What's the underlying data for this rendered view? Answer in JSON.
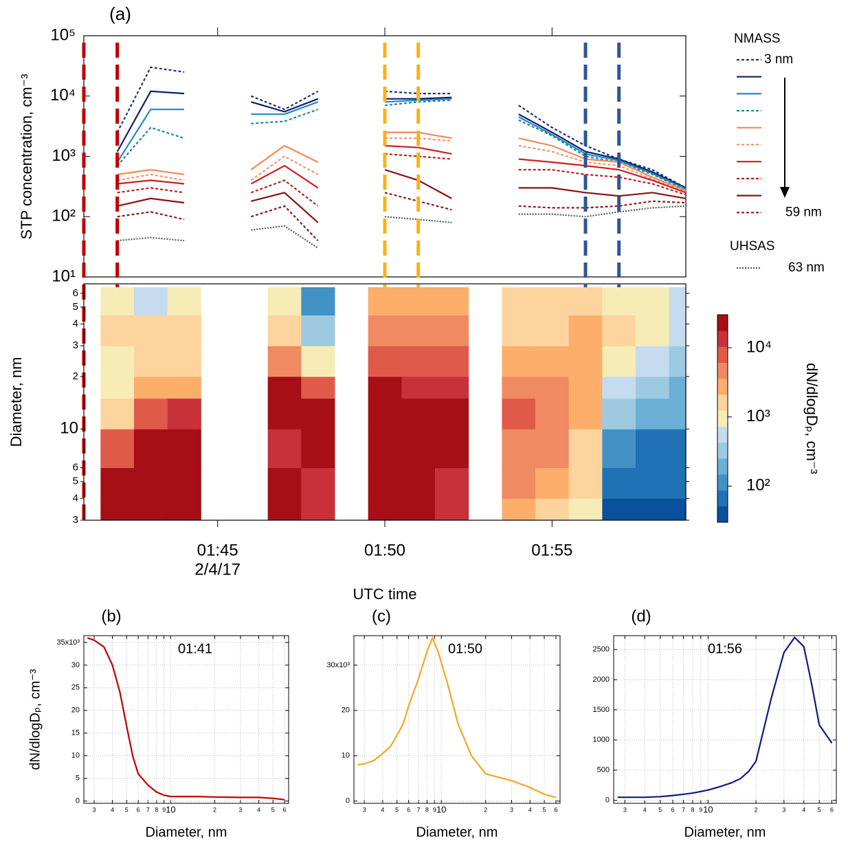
{
  "chart_data": [
    {
      "type": "line",
      "panel_label": "(a)",
      "ylabel": "STP concentration, cm⁻³",
      "log_y": true,
      "ylim": [
        10,
        100000
      ],
      "yticks": [
        {
          "value": 10,
          "label": "10¹"
        },
        {
          "value": 100,
          "label": "10²"
        },
        {
          "value": 1000,
          "label": "10³"
        },
        {
          "value": 10000,
          "label": "10⁴"
        },
        {
          "value": 100000,
          "label": "10⁵"
        }
      ],
      "xlim": [
        "01:41",
        "01:59"
      ],
      "x": [
        "01:42",
        "01:43",
        "01:44",
        "01:45",
        "01:46",
        "01:47",
        "01:48",
        "01:49",
        "01:50",
        "01:51",
        "01:52",
        "01:53",
        "01:54",
        "01:55",
        "01:56",
        "01:57",
        "01:58",
        "01:59"
      ],
      "groups": [
        {
          "title": "NMASS",
          "series": [
            {
              "name": "3 nm",
              "color": "#1f2f6e",
              "style": "dotted",
              "values": [
                2500,
                30000,
                25000,
                null,
                10000,
                6000,
                12000,
                null,
                12000,
                11000,
                11000,
                null,
                7000,
                3000,
                1500,
                900,
                600,
                300
              ]
            },
            {
              "color": "#0d1f6b",
              "style": "solid",
              "values": [
                1200,
                12000,
                11000,
                null,
                8000,
                5500,
                9000,
                null,
                9000,
                9000,
                9500,
                null,
                5000,
                2500,
                1200,
                900,
                550,
                300
              ]
            },
            {
              "color": "#1e88c8",
              "style": "solid",
              "values": [
                800,
                6000,
                6000,
                null,
                5000,
                5000,
                8000,
                null,
                8000,
                8500,
                9000,
                null,
                4500,
                2300,
                1100,
                850,
                520,
                290
              ]
            },
            {
              "color": "#1a8a9a",
              "style": "dotted",
              "values": [
                700,
                3000,
                2000,
                null,
                3500,
                3800,
                6000,
                null,
                7000,
                8000,
                8500,
                null,
                4000,
                2200,
                1000,
                800,
                500,
                280
              ]
            },
            {
              "color": "#f08a5a",
              "style": "solid",
              "values": [
                500,
                600,
                500,
                null,
                600,
                1500,
                800,
                null,
                2500,
                2500,
                2000,
                null,
                2000,
                1500,
                900,
                800,
                450,
                270
              ]
            },
            {
              "color": "#f0956a",
              "style": "dotted",
              "values": [
                400,
                500,
                400,
                null,
                400,
                1000,
                500,
                null,
                2000,
                2000,
                1800,
                null,
                1500,
                1200,
                800,
                700,
                420,
                260
              ]
            },
            {
              "color": "#cc2020",
              "style": "solid",
              "values": [
                350,
                400,
                350,
                null,
                350,
                700,
                300,
                null,
                1500,
                1400,
                1100,
                null,
                900,
                800,
                700,
                600,
                400,
                250
              ]
            },
            {
              "color": "#c01818",
              "style": "dotted",
              "values": [
                250,
                300,
                250,
                null,
                250,
                400,
                150,
                null,
                1100,
                1000,
                900,
                null,
                600,
                600,
                500,
                450,
                350,
                230
              ]
            },
            {
              "color": "#8b1010",
              "style": "solid",
              "values": [
                150,
                200,
                170,
                null,
                180,
                250,
                80,
                null,
                600,
                400,
                200,
                null,
                300,
                300,
                250,
                220,
                250,
                200
              ]
            },
            {
              "name": "59 nm",
              "color": "#8b1a1a",
              "style": "dotted",
              "values": [
                100,
                120,
                90,
                null,
                100,
                150,
                40,
                null,
                250,
                180,
                130,
                null,
                150,
                140,
                140,
                150,
                180,
                170
              ]
            }
          ]
        },
        {
          "title": "UHSAS",
          "series": [
            {
              "name": "63 nm",
              "color": "#555555",
              "style": "dotted",
              "values": [
                40,
                45,
                40,
                null,
                60,
                70,
                30,
                null,
                100,
                90,
                80,
                null,
                110,
                110,
                100,
                120,
                140,
                150
              ]
            }
          ]
        }
      ],
      "markers": [
        {
          "x": "01:41",
          "color": "#c00000"
        },
        {
          "x": "01:42",
          "color": "#c00000"
        },
        {
          "x": "01:50",
          "color": "#fbb117"
        },
        {
          "x": "01:51",
          "color": "#fbb117"
        },
        {
          "x": "01:56",
          "color": "#2f5597"
        },
        {
          "x": "01:57",
          "color": "#2f5597"
        }
      ]
    },
    {
      "type": "heatmap",
      "ylabel": "Diameter, nm",
      "xlabel": "UTC time",
      "x_sublabel": "2/4/17",
      "log_y": true,
      "xlim": [
        "01:41",
        "01:59"
      ],
      "xticks": [
        "01:45",
        "01:50",
        "01:55"
      ],
      "x": [
        "01:42",
        "01:43",
        "01:44",
        "01:45",
        "01:46",
        "01:47",
        "01:48",
        "01:49",
        "01:50",
        "01:51",
        "01:52",
        "01:53",
        "01:54",
        "01:55",
        "01:56",
        "01:57",
        "01:58",
        "01:59"
      ],
      "ylim": [
        3,
        68
      ],
      "yticks": [
        3,
        4,
        5,
        6,
        10,
        {
          "value": 20,
          "label": "2"
        },
        {
          "value": 30,
          "label": "3"
        },
        {
          "value": 40,
          "label": "4"
        },
        {
          "value": 50,
          "label": "5"
        },
        {
          "value": 60,
          "label": "6"
        }
      ],
      "y_bins": [
        3,
        4,
        6,
        10,
        15,
        20,
        30,
        45,
        65
      ],
      "z": [
        [
          25000,
          25000,
          25000,
          null,
          null,
          20000,
          15000,
          null,
          20000,
          20000,
          15000,
          null,
          3000,
          2000,
          1000,
          50,
          50,
          50
        ],
        [
          20000,
          25000,
          25000,
          null,
          null,
          20000,
          15000,
          null,
          20000,
          20000,
          15000,
          null,
          4000,
          3000,
          1500,
          60,
          60,
          60
        ],
        [
          8000,
          25000,
          25000,
          null,
          null,
          15000,
          20000,
          null,
          20000,
          25000,
          20000,
          null,
          6000,
          4000,
          2000,
          100,
          80,
          70
        ],
        [
          2000,
          8000,
          15000,
          null,
          null,
          20000,
          20000,
          null,
          25000,
          25000,
          20000,
          null,
          8000,
          5000,
          3000,
          300,
          200,
          150
        ],
        [
          1000,
          3000,
          3000,
          null,
          null,
          20000,
          8000,
          null,
          20000,
          15000,
          15000,
          null,
          5000,
          4000,
          3000,
          500,
          300,
          200
        ],
        [
          800,
          1500,
          2000,
          null,
          null,
          6000,
          1000,
          null,
          10000,
          8000,
          8000,
          null,
          3000,
          2500,
          2500,
          1000,
          500,
          400
        ],
        [
          1500,
          1500,
          1500,
          null,
          null,
          2000,
          300,
          null,
          5000,
          5000,
          5000,
          null,
          2000,
          2000,
          3000,
          2000,
          800,
          600
        ],
        [
          1000,
          500,
          800,
          null,
          null,
          800,
          100,
          null,
          3000,
          3000,
          3000,
          null,
          1500,
          1500,
          1500,
          1200,
          800,
          600
        ]
      ],
      "colorbar": {
        "label": "dN/dlogDₚ, cm⁻³",
        "log": true,
        "lim": [
          30,
          30000
        ],
        "ticks": [
          {
            "value": 100,
            "label": "10²"
          },
          {
            "value": 1000,
            "label": "10³"
          },
          {
            "value": 10000,
            "label": "10⁴"
          }
        ],
        "colors": [
          "#08519c",
          "#2171b5",
          "#4292c6",
          "#6baed6",
          "#9ecae1",
          "#c6dbef",
          "#f7ecb5",
          "#fdd49e",
          "#fdae6b",
          "#f08a62",
          "#e05a4a",
          "#c8313a",
          "#a50f15"
        ]
      }
    },
    {
      "type": "line",
      "panel_label": "(b)",
      "annotation": "01:41",
      "ylabel": "dN/dlogDₚ, cm⁻³",
      "xlabel": "Diameter, nm",
      "log_x": true,
      "grid": true,
      "color": "#c00000",
      "xlim": [
        2.55,
        64
      ],
      "xticks": [
        3,
        4,
        5,
        6,
        7,
        8,
        9,
        10,
        {
          "value": 20,
          "label": "2"
        },
        {
          "value": 30,
          "label": "3"
        },
        {
          "value": 40,
          "label": "4"
        },
        {
          "value": 50,
          "label": "5"
        },
        {
          "value": 60,
          "label": "6"
        }
      ],
      "ylim": [
        -0.5,
        36.5
      ],
      "yticks": [
        0,
        5,
        10,
        15,
        20,
        25,
        30,
        {
          "value": 35,
          "label": "35x10³"
        }
      ],
      "x": [
        2.7,
        3,
        3.5,
        4,
        4.5,
        5,
        5.5,
        6,
        7,
        8,
        9,
        10,
        12,
        15,
        20,
        30,
        40,
        50,
        60
      ],
      "values": [
        36,
        35.5,
        34,
        30,
        24,
        16.5,
        10,
        6,
        3.5,
        2,
        1.3,
        1,
        1,
        1,
        0.9,
        0.8,
        0.8,
        0.6,
        0.3
      ]
    },
    {
      "type": "line",
      "panel_label": "(c)",
      "annotation": "01:50",
      "xlabel": "Diameter, nm",
      "log_x": true,
      "grid": true,
      "color": "#f5a623",
      "xlim": [
        2.55,
        64
      ],
      "xticks": [
        3,
        4,
        5,
        6,
        7,
        8,
        9,
        10,
        {
          "value": 20,
          "label": "2"
        },
        {
          "value": 30,
          "label": "3"
        },
        {
          "value": 40,
          "label": "4"
        },
        {
          "value": 50,
          "label": "5"
        },
        {
          "value": 60,
          "label": "6"
        }
      ],
      "ylim": [
        -0.5,
        36.5
      ],
      "yticks": [
        0,
        10,
        20,
        {
          "value": 30,
          "label": "30x10³"
        }
      ],
      "x": [
        2.7,
        3,
        3.5,
        4,
        4.5,
        5,
        5.5,
        6,
        7,
        8,
        8.7,
        9.5,
        11,
        13,
        16,
        20,
        30,
        40,
        50,
        60
      ],
      "values": [
        8,
        8.2,
        9,
        10.5,
        12,
        14.5,
        17,
        21,
        27,
        33,
        36,
        33,
        26,
        17,
        10,
        6,
        4.5,
        3,
        1.5,
        0.8
      ]
    },
    {
      "type": "line",
      "panel_label": "(d)",
      "annotation": "01:56",
      "xlabel": "Diameter, nm",
      "log_x": true,
      "grid": true,
      "color": "#0d1a80",
      "xlim": [
        2.55,
        64
      ],
      "xticks": [
        3,
        4,
        5,
        6,
        7,
        8,
        9,
        10,
        {
          "value": 20,
          "label": "2"
        },
        {
          "value": 30,
          "label": "3"
        },
        {
          "value": 40,
          "label": "4"
        },
        {
          "value": 50,
          "label": "5"
        },
        {
          "value": 60,
          "label": "6"
        }
      ],
      "ylim": [
        -50,
        2730
      ],
      "yticks": [
        0,
        500,
        1000,
        1500,
        2000,
        2500
      ],
      "x": [
        2.7,
        3,
        4,
        5,
        6,
        7,
        8,
        10,
        12,
        14,
        16,
        18,
        20,
        25,
        30,
        35,
        40,
        45,
        50,
        60
      ],
      "values": [
        50,
        50,
        50,
        60,
        80,
        100,
        120,
        170,
        230,
        290,
        360,
        480,
        650,
        1700,
        2450,
        2700,
        2550,
        1900,
        1250,
        950
      ]
    }
  ]
}
